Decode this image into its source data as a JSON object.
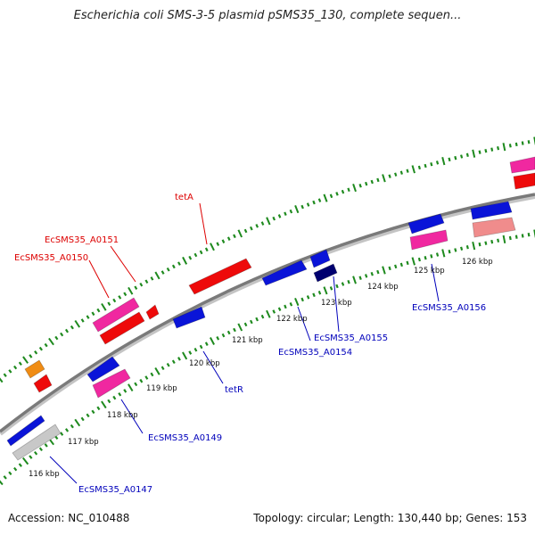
{
  "title": "Escherichia coli SMS-3-5 plasmid pSMS35_130, complete sequen...",
  "footer": {
    "accession": "Accession: NC_010488",
    "summary": "Topology: circular; Length: 130,440 bp; Genes: 153"
  },
  "colors": {
    "backbone": "#7a7a7a",
    "dots": "#1e8a1e",
    "blue": "#0a14d8",
    "navy": "#000070",
    "red": "#ee0a0a",
    "pink": "#f028a0",
    "salmon": "#f08c8c",
    "gray": "#c8c8c8",
    "orange": "#f08c14",
    "red_label": "#dd0000",
    "blue_label": "#0000bb"
  },
  "ticks": [
    {
      "label": "116 kbp"
    },
    {
      "label": "117 kbp"
    },
    {
      "label": "118 kbp"
    },
    {
      "label": "119 kbp"
    },
    {
      "label": "120 kbp"
    },
    {
      "label": "121 kbp"
    },
    {
      "label": "122 kbp"
    },
    {
      "label": "123 kbp"
    },
    {
      "label": "124 kbp"
    },
    {
      "label": "125 kbp"
    },
    {
      "label": "126 kbp"
    }
  ],
  "gene_labels": [
    {
      "name": "tetA",
      "color": "red"
    },
    {
      "name": "EcSMS35_A0151",
      "color": "red"
    },
    {
      "name": "EcSMS35_A0150",
      "color": "red"
    },
    {
      "name": "EcSMS35_A0156",
      "color": "blue"
    },
    {
      "name": "EcSMS35_A0155",
      "color": "blue"
    },
    {
      "name": "EcSMS35_A0154",
      "color": "blue"
    },
    {
      "name": "tetR",
      "color": "blue"
    },
    {
      "name": "EcSMS35_A0149",
      "color": "blue"
    },
    {
      "name": "EcSMS35_A0147",
      "color": "blue"
    }
  ]
}
